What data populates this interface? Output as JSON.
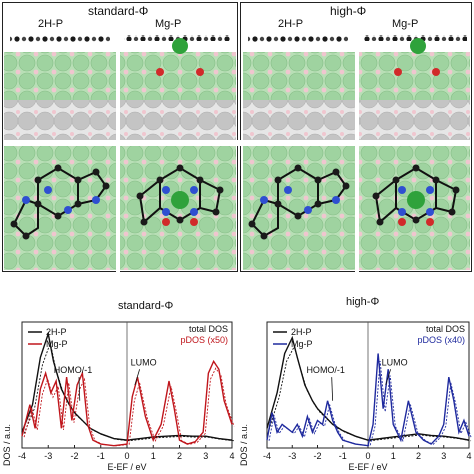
{
  "top_panel": {
    "left_group_title": "standard-Φ",
    "right_group_title": "high-Φ",
    "columns": [
      "2H-P",
      "Mg-P",
      "2H-P",
      "Mg-P"
    ]
  },
  "colors": {
    "substrate_green": "#9fd3a0",
    "substrate_pink": "#f0c6cf",
    "grey_atom": "#c4c4c4",
    "carbon": "#1a1a1a",
    "nitrogen": "#2f4fd1",
    "oxygen": "#d12a2a",
    "magnesium": "#2fa23b",
    "black_curve": "#111111",
    "red_curve": "#c0161c",
    "blue_curve": "#1f2a9e"
  },
  "chart_data": [
    {
      "type": "line",
      "title": "standard-Φ",
      "xlabel": "E-EF / eV",
      "ylabel": "DOS / a.u.",
      "xlim": [
        -4,
        4
      ],
      "xticks": [
        -4,
        -3,
        -2,
        -1,
        0,
        1,
        2,
        3,
        4
      ],
      "legend": {
        "entries": [
          "2H-P",
          "Mg-P"
        ],
        "placement": "top-left"
      },
      "dos_legend": {
        "total": "total DOS",
        "pdos": "pDOS (x50)",
        "placement": "top-right"
      },
      "annotations": [
        "HOMO/-1",
        "LUMO"
      ],
      "series": [
        {
          "name": "2H-P",
          "x": [
            -4,
            -3.6,
            -3.3,
            -3.0,
            -2.8,
            -2.5,
            -2.2,
            -2.0,
            -1.7,
            -1.4,
            -1.0,
            -0.5,
            0,
            0.5,
            1,
            1.5,
            2,
            2.5,
            3,
            3.5,
            4
          ],
          "values": [
            0.2,
            0.55,
            1.15,
            1.45,
            1.1,
            0.75,
            0.55,
            0.45,
            0.35,
            0.25,
            0.18,
            0.12,
            0.1,
            0.12,
            0.14,
            0.15,
            0.16,
            0.15,
            0.15,
            0.12,
            0.1
          ]
        },
        {
          "name": "Mg-P",
          "x": [
            -4,
            -3.7,
            -3.5,
            -3.3,
            -3.1,
            -2.9,
            -2.7,
            -2.5,
            -2.3,
            -2.1,
            -1.9,
            -1.7,
            -1.5,
            -1.3,
            -1.0,
            -0.5,
            0,
            0.2,
            0.4,
            0.7,
            1.0,
            1.3,
            1.6,
            1.8,
            2.0,
            2.3,
            2.6,
            2.9,
            3.1,
            3.3,
            3.5,
            3.7,
            4
          ],
          "values": [
            0.15,
            0.55,
            0.25,
            0.75,
            0.95,
            0.7,
            0.85,
            0.25,
            0.9,
            0.35,
            0.8,
            0.95,
            0.3,
            0.1,
            0.05,
            0.03,
            0.05,
            0.65,
            0.9,
            0.4,
            0.1,
            0.3,
            0.85,
            0.5,
            0.1,
            0.05,
            0.08,
            0.2,
            0.95,
            1.1,
            1.0,
            0.6,
            0.3
          ]
        }
      ]
    },
    {
      "type": "line",
      "title": "high-Φ",
      "xlabel": "E-EF / eV",
      "ylabel": "DOS / a.u.",
      "xlim": [
        -4,
        4
      ],
      "xticks": [
        -4,
        -3,
        -2,
        -1,
        0,
        1,
        2,
        3,
        4
      ],
      "legend": {
        "entries": [
          "2H-P",
          "Mg-P"
        ],
        "placement": "top-left"
      },
      "dos_legend": {
        "total": "total DOS",
        "pdos": "pDOS (x40)",
        "placement": "top-right"
      },
      "annotations": [
        "HOMO/-1",
        "LUMO"
      ],
      "series": [
        {
          "name": "2H-P",
          "x": [
            -4,
            -3.6,
            -3.3,
            -3.0,
            -2.8,
            -2.5,
            -2.2,
            -2.0,
            -1.7,
            -1.4,
            -1.0,
            -0.5,
            0,
            0.5,
            1,
            1.5,
            2,
            2.5,
            3,
            3.5,
            4
          ],
          "values": [
            0.25,
            0.7,
            1.2,
            1.4,
            1.15,
            0.8,
            0.6,
            0.5,
            0.4,
            0.3,
            0.22,
            0.15,
            0.1,
            0.12,
            0.14,
            0.16,
            0.18,
            0.16,
            0.15,
            0.13,
            0.1
          ]
        },
        {
          "name": "Mg-P",
          "x": [
            -4,
            -3.8,
            -3.6,
            -3.4,
            -3.2,
            -3.0,
            -2.8,
            -2.6,
            -2.4,
            -2.2,
            -2.0,
            -1.8,
            -1.6,
            -1.4,
            -1.2,
            -1.0,
            -0.5,
            0,
            0.2,
            0.4,
            0.6,
            0.8,
            1.0,
            1.3,
            1.6,
            1.9,
            2.2,
            2.5,
            2.8,
            3.0,
            3.2,
            3.4,
            3.6,
            3.8,
            4
          ],
          "values": [
            0.1,
            0.45,
            0.2,
            0.3,
            0.25,
            0.2,
            0.3,
            0.15,
            0.4,
            0.2,
            0.35,
            0.3,
            0.6,
            0.35,
            0.2,
            0.1,
            0.05,
            0.03,
            0.3,
            1.2,
            0.5,
            1.0,
            0.3,
            0.1,
            0.6,
            0.2,
            0.1,
            0.05,
            0.15,
            0.3,
            0.9,
            0.6,
            0.2,
            0.35,
            0.15
          ]
        }
      ]
    }
  ]
}
